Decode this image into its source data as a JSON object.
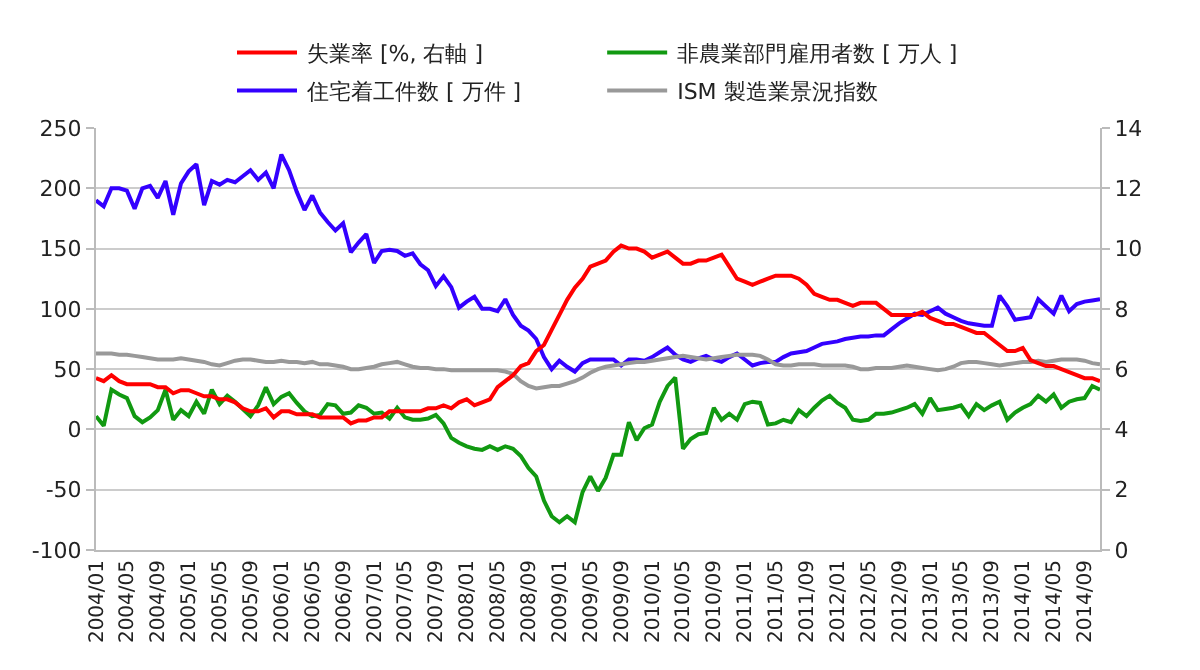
{
  "chart_data": {
    "type": "line",
    "categories": [
      "2004/01",
      null,
      null,
      null,
      "2004/05",
      null,
      null,
      null,
      "2004/09",
      null,
      null,
      null,
      "2005/01",
      null,
      null,
      null,
      "2005/05",
      null,
      null,
      null,
      "2005/09",
      null,
      null,
      null,
      "2006/01",
      null,
      null,
      null,
      "2006/05",
      null,
      null,
      null,
      "2006/09",
      null,
      null,
      null,
      "2007/01",
      null,
      null,
      null,
      "2007/05",
      null,
      null,
      null,
      "2007/09",
      null,
      null,
      null,
      "2008/01",
      null,
      null,
      null,
      "2008/05",
      null,
      null,
      null,
      "2008/09",
      null,
      null,
      null,
      "2009/01",
      null,
      null,
      null,
      "2009/05",
      null,
      null,
      null,
      "2009/09",
      null,
      null,
      null,
      "2010/01",
      null,
      null,
      null,
      "2010/05",
      null,
      null,
      null,
      "2010/09",
      null,
      null,
      null,
      "2011/01",
      null,
      null,
      null,
      "2011/05",
      null,
      null,
      null,
      "2011/09",
      null,
      null,
      null,
      "2012/01",
      null,
      null,
      null,
      "2012/05",
      null,
      null,
      null,
      "2012/09",
      null,
      null,
      null,
      "2013/01",
      null,
      null,
      null,
      "2013/05",
      null,
      null,
      null,
      "2013/09",
      null,
      null,
      null,
      "2014/01",
      null,
      null,
      null,
      "2014/05",
      null,
      null,
      null,
      "2014/09",
      null,
      null
    ],
    "series": [
      {
        "name": "失業率 [%, 右軸 ]",
        "color": "#ff0000",
        "axis": "y2",
        "values": [
          5.7,
          5.6,
          5.8,
          5.6,
          5.5,
          5.5,
          5.5,
          5.5,
          5.4,
          5.4,
          5.2,
          5.3,
          5.3,
          5.2,
          5.1,
          5.1,
          5.0,
          5.0,
          4.9,
          4.7,
          4.6,
          4.6,
          4.7,
          4.4,
          4.6,
          4.6,
          4.5,
          4.5,
          4.5,
          4.4,
          4.4,
          4.4,
          4.4,
          4.2,
          4.3,
          4.3,
          4.4,
          4.4,
          4.6,
          4.6,
          4.6,
          4.6,
          4.6,
          4.7,
          4.7,
          4.8,
          4.7,
          4.9,
          5.0,
          4.8,
          4.9,
          5.0,
          5.4,
          5.6,
          5.8,
          6.1,
          6.2,
          6.6,
          6.8,
          7.3,
          7.8,
          8.3,
          8.7,
          9.0,
          9.4,
          9.5,
          9.6,
          9.9,
          10.1,
          10.0,
          10.0,
          9.9,
          9.7,
          9.8,
          9.9,
          9.7,
          9.5,
          9.5,
          9.6,
          9.6,
          9.7,
          9.8,
          9.4,
          9.0,
          8.9,
          8.8,
          8.9,
          9.0,
          9.1,
          9.1,
          9.1,
          9.0,
          8.8,
          8.5,
          8.4,
          8.3,
          8.3,
          8.2,
          8.1,
          8.2,
          8.2,
          8.2,
          8.0,
          7.8,
          7.8,
          7.8,
          7.8,
          7.9,
          7.7,
          7.6,
          7.5,
          7.5,
          7.4,
          7.3,
          7.2,
          7.2,
          7.0,
          6.8,
          6.6,
          6.6,
          6.7,
          6.3,
          6.2,
          6.1,
          6.1,
          6.0,
          5.9,
          5.8,
          5.7,
          5.7,
          5.6
        ]
      },
      {
        "name": "非農業部門雇用者数 [ 万人 ]",
        "color": "#119911",
        "values": [
          11,
          3,
          33,
          29,
          26,
          11,
          6,
          10,
          16,
          33,
          8,
          16,
          11,
          23,
          13,
          33,
          21,
          28,
          23,
          17,
          11,
          20,
          35,
          21,
          27,
          30,
          22,
          15,
          11,
          12,
          21,
          20,
          13,
          14,
          20,
          18,
          13,
          14,
          9,
          18,
          10,
          8,
          8,
          9,
          12,
          5,
          -7,
          -11,
          -14,
          -16,
          -17,
          -14,
          -17,
          -14,
          -16,
          -22,
          -32,
          -39,
          -59,
          -72,
          -77,
          -72,
          -77,
          -52,
          -39,
          -51,
          -40,
          -21,
          -21,
          6,
          -9,
          1,
          4,
          23,
          36,
          43,
          -16,
          -8,
          -4,
          -3,
          18,
          8,
          13,
          8,
          21,
          23,
          22,
          4,
          5,
          8,
          6,
          16,
          11,
          18,
          24,
          28,
          22,
          18,
          8,
          7,
          8,
          13,
          13,
          14,
          16,
          18,
          21,
          13,
          26,
          16,
          17,
          18,
          20,
          11,
          21,
          16,
          20,
          23,
          8,
          14,
          18,
          21,
          28,
          23,
          29,
          18,
          23,
          25,
          26,
          36,
          33
        ]
      },
      {
        "name": "住宅着工件数 [ 万件 ]",
        "color": "#3300ff",
        "values": [
          190,
          185,
          200,
          200,
          198,
          183,
          200,
          202,
          192,
          206,
          178,
          204,
          214,
          220,
          186,
          206,
          203,
          207,
          205,
          210,
          215,
          207,
          213,
          200,
          228,
          215,
          197,
          182,
          194,
          180,
          172,
          165,
          171,
          147,
          155,
          162,
          138,
          148,
          149,
          148,
          144,
          146,
          137,
          132,
          119,
          127,
          118,
          101,
          106,
          110,
          100,
          100,
          98,
          108,
          95,
          86,
          82,
          75,
          60,
          50,
          57,
          52,
          48,
          55,
          58,
          58,
          58,
          58,
          53,
          58,
          58,
          57,
          60,
          64,
          68,
          62,
          58,
          56,
          59,
          61,
          58,
          56,
          60,
          63,
          58,
          53,
          55,
          56,
          56,
          60,
          63,
          64,
          65,
          68,
          71,
          72,
          73,
          75,
          76,
          77,
          77,
          78,
          78,
          83,
          88,
          92,
          96,
          95,
          98,
          101,
          96,
          93,
          90,
          88,
          87,
          86,
          86,
          111,
          102,
          91,
          92,
          93,
          108,
          102,
          96,
          111,
          98,
          104,
          106,
          107,
          108
        ]
      },
      {
        "name": "ISM 製造業景況指数",
        "color": "#999999",
        "values": [
          63,
          63,
          63,
          62,
          62,
          61,
          60,
          59,
          58,
          58,
          58,
          59,
          58,
          57,
          56,
          54,
          53,
          55,
          57,
          58,
          58,
          57,
          56,
          56,
          57,
          56,
          56,
          55,
          56,
          54,
          54,
          53,
          52,
          50,
          50,
          51,
          52,
          54,
          55,
          56,
          54,
          52,
          51,
          51,
          50,
          50,
          49,
          49,
          49,
          49,
          49,
          49,
          49,
          48,
          46,
          40,
          36,
          34,
          35,
          36,
          36,
          38,
          40,
          43,
          47,
          50,
          52,
          53,
          54,
          55,
          56,
          56,
          57,
          58,
          59,
          60,
          61,
          60,
          59,
          58,
          59,
          60,
          61,
          62,
          62,
          62,
          61,
          58,
          54,
          53,
          53,
          54,
          54,
          54,
          53,
          53,
          53,
          53,
          52,
          50,
          50,
          51,
          51,
          51,
          52,
          53,
          52,
          51,
          50,
          49,
          50,
          52,
          55,
          56,
          56,
          55,
          54,
          53,
          54,
          55,
          56,
          56,
          57,
          56,
          57,
          58,
          58,
          58,
          57,
          55,
          54
        ]
      }
    ],
    "ylim": [
      -100,
      250
    ],
    "yticks": [
      -100,
      -50,
      0,
      50,
      100,
      150,
      200,
      250
    ],
    "y2lim": [
      0,
      14
    ],
    "y2ticks": [
      0,
      2,
      4,
      6,
      8,
      10,
      12,
      14
    ],
    "grid": "y",
    "legend": "top",
    "marker": "none",
    "line_style": "solid"
  }
}
